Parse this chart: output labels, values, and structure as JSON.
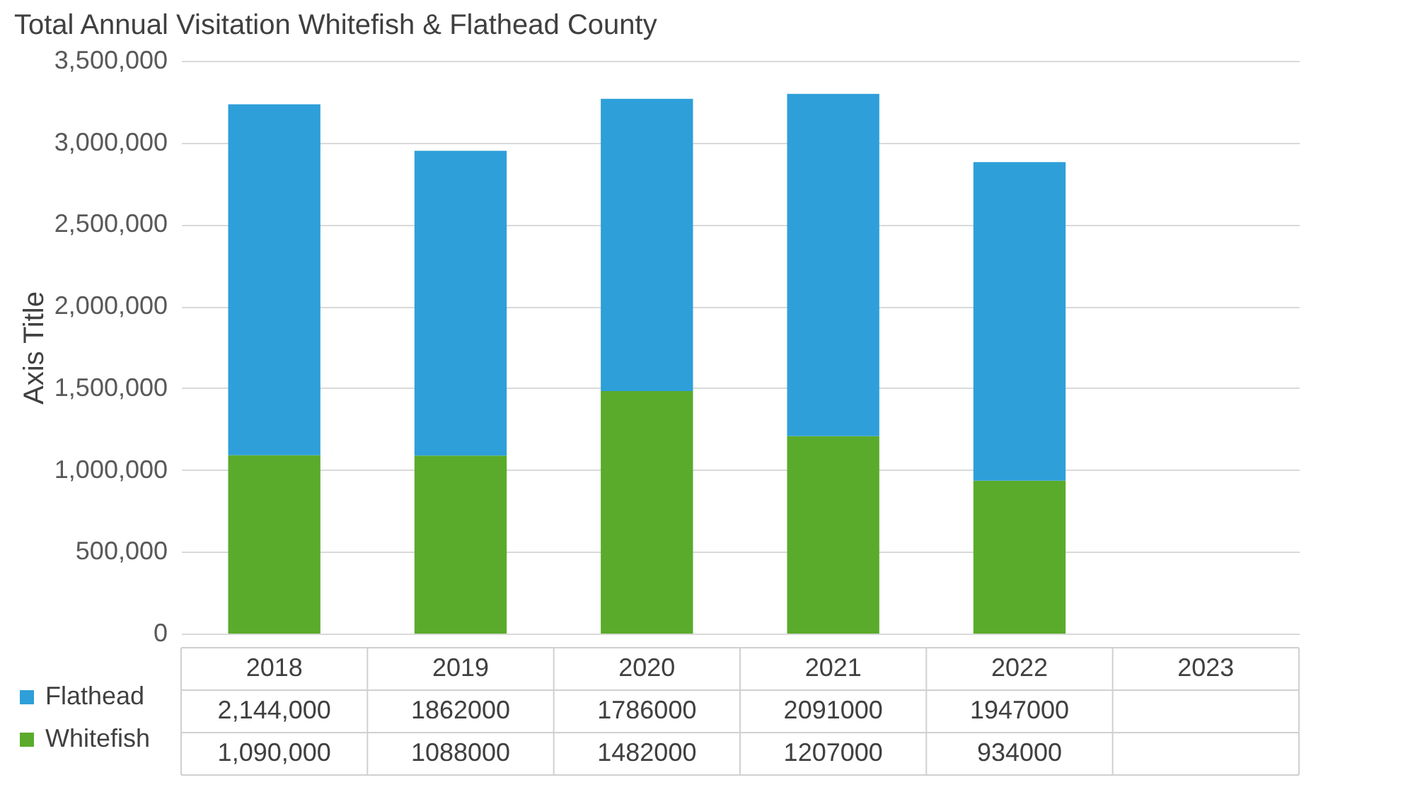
{
  "chart_data": {
    "type": "bar",
    "title": "Total Annual Visitation Whitefish & Flathead County",
    "ylabel": "Axis Title",
    "categories": [
      "2018",
      "2019",
      "2020",
      "2021",
      "2022",
      "2023"
    ],
    "stacked": true,
    "series": [
      {
        "name": "Whitefish",
        "color": "#5aab2b",
        "values": [
          1090000,
          1088000,
          1482000,
          1207000,
          934000,
          null
        ],
        "value_labels": [
          "1,090,000",
          "1088000",
          "1482000",
          "1207000",
          "934000",
          null
        ]
      },
      {
        "name": "Flathead",
        "color": "#2e9fd9",
        "values": [
          2144000,
          1862000,
          1786000,
          2091000,
          1947000,
          null
        ],
        "value_labels": [
          "2,144,000",
          "1862000",
          "1786000",
          "2091000",
          "1947000",
          null
        ]
      }
    ],
    "ylim": [
      0,
      3500000
    ],
    "yticks": [
      0,
      {
        "value": 500000,
        "label": "500,000"
      },
      {
        "value": 1000000,
        "label": "1,000,000"
      },
      {
        "value": 1500000,
        "label": "1,500,000"
      },
      {
        "value": 2000000,
        "label": "2,000,000"
      },
      {
        "value": 2500000,
        "label": "2,500,000"
      },
      {
        "value": 3000000,
        "label": "3,000,000"
      },
      {
        "value": 3500000,
        "label": "3,500,000"
      }
    ],
    "grid": "y",
    "legend": "bottom"
  }
}
